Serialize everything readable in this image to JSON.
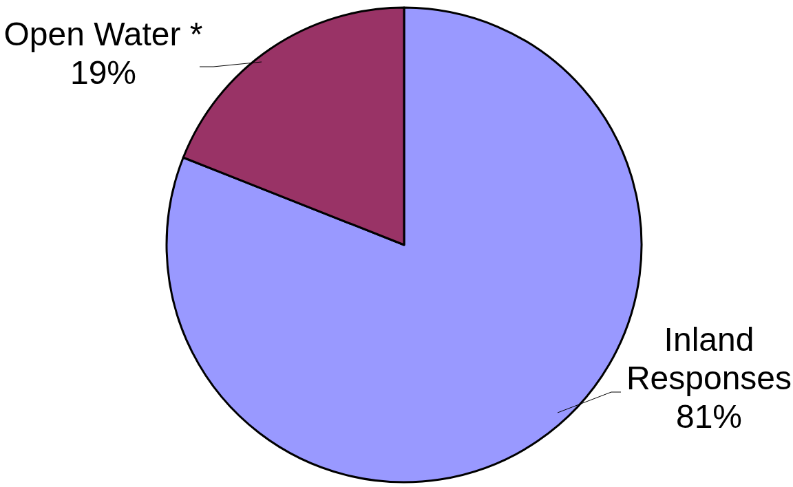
{
  "chart_data": {
    "type": "pie",
    "categories": [
      "Inland Responses",
      "Open Water *"
    ],
    "values": [
      81,
      19
    ],
    "colors": [
      "#9999ff",
      "#993366"
    ],
    "value_labels": [
      "81%",
      "19%"
    ]
  }
}
